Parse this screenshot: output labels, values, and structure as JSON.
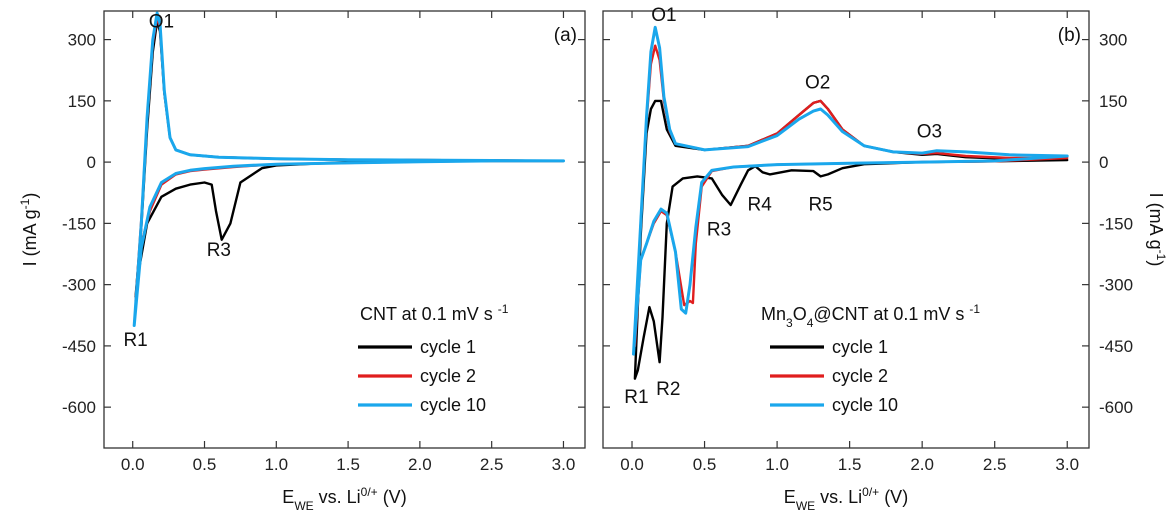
{
  "chart_data": [
    {
      "type": "line",
      "panel_label": "(a)",
      "xlabel": {
        "main": "E",
        "sub": "WE",
        "rest": " vs. Li",
        "sup": "0/+",
        "unit": " (V)"
      },
      "ylabel": {
        "main": "I (mA g",
        "sup": "-1",
        "end": ")"
      },
      "xlim": [
        -0.2,
        3.15
      ],
      "ylim": [
        -700,
        370
      ],
      "xticks": [
        0.0,
        0.5,
        1.0,
        1.5,
        2.0,
        2.5,
        3.0
      ],
      "xtick_labels": [
        "0.0",
        "0.5",
        "1.0",
        "1.5",
        "2.0",
        "2.5",
        "3.0"
      ],
      "yticks": [
        300,
        150,
        0,
        -150,
        -300,
        -450,
        -600
      ],
      "ytick_labels": [
        "300",
        "150",
        "0",
        "-150",
        "-300",
        "-450",
        "-600"
      ],
      "legend_title": {
        "main": "CNT at 0.1 mV s",
        "sup": "-1"
      },
      "legend_placement": "lower-right",
      "annotations": [
        {
          "text": "O1",
          "x": 0.2,
          "y": 330
        },
        {
          "text": "R3",
          "x": 0.6,
          "y": -230
        },
        {
          "text": "R1",
          "x": 0.02,
          "y": -450
        }
      ],
      "series": [
        {
          "name": "cycle 1",
          "color": "#000000",
          "x": [
            0.02,
            0.06,
            0.1,
            0.14,
            0.17,
            0.19,
            0.22,
            0.26,
            0.3,
            0.4,
            0.5,
            0.6,
            0.8,
            1.0,
            1.5,
            2.0,
            2.5,
            3.0,
            2.5,
            2.0,
            1.5,
            1.0,
            0.9,
            0.75,
            0.68,
            0.62,
            0.58,
            0.55,
            0.5,
            0.4,
            0.3,
            0.2,
            0.1,
            0.05,
            0.02
          ],
          "y": [
            -330,
            -160,
            80,
            270,
            345,
            320,
            170,
            60,
            30,
            18,
            15,
            12,
            10,
            8,
            6,
            5,
            4,
            3,
            3,
            2,
            0,
            -8,
            -15,
            -50,
            -150,
            -190,
            -120,
            -55,
            -50,
            -55,
            -65,
            -85,
            -150,
            -250,
            -330
          ]
        },
        {
          "name": "cycle 2",
          "color": "#e01e1e",
          "x": [
            0.02,
            0.06,
            0.1,
            0.14,
            0.17,
            0.19,
            0.22,
            0.26,
            0.3,
            0.4,
            0.5,
            0.6,
            0.8,
            1.0,
            1.5,
            2.0,
            2.5,
            3.0,
            2.5,
            2.0,
            1.5,
            1.0,
            0.7,
            0.5,
            0.4,
            0.3,
            0.2,
            0.12,
            0.06,
            0.02
          ],
          "y": [
            -340,
            -140,
            100,
            290,
            355,
            330,
            170,
            60,
            30,
            18,
            15,
            12,
            10,
            8,
            6,
            5,
            4,
            3,
            3,
            1,
            -2,
            -5,
            -12,
            -18,
            -22,
            -30,
            -55,
            -120,
            -200,
            -340
          ]
        },
        {
          "name": "cycle 10",
          "color": "#1aa7ec",
          "x": [
            0.01,
            0.06,
            0.1,
            0.14,
            0.17,
            0.19,
            0.22,
            0.26,
            0.3,
            0.4,
            0.5,
            0.6,
            0.8,
            1.0,
            1.5,
            2.0,
            2.5,
            3.0,
            2.5,
            2.0,
            1.5,
            1.0,
            0.7,
            0.5,
            0.4,
            0.3,
            0.2,
            0.12,
            0.06,
            0.01
          ],
          "y": [
            -400,
            -150,
            110,
            300,
            365,
            340,
            175,
            60,
            30,
            18,
            15,
            12,
            10,
            8,
            6,
            5,
            4,
            3,
            3,
            1,
            -2,
            -5,
            -10,
            -16,
            -20,
            -28,
            -50,
            -110,
            -210,
            -400
          ]
        }
      ]
    },
    {
      "type": "line",
      "panel_label": "(b)",
      "xlabel": {
        "main": "E",
        "sub": "WE",
        "rest": " vs. Li",
        "sup": "0/+",
        "unit": " (V)"
      },
      "ylabel": {
        "main": "I (mA g",
        "sup": "-1",
        "end": ")"
      },
      "xlim": [
        -0.2,
        3.15
      ],
      "ylim": [
        -700,
        370
      ],
      "xticks": [
        0.0,
        0.5,
        1.0,
        1.5,
        2.0,
        2.5,
        3.0
      ],
      "xtick_labels": [
        "0.0",
        "0.5",
        "1.0",
        "1.5",
        "2.0",
        "2.5",
        "3.0"
      ],
      "yticks": [
        300,
        150,
        0,
        -150,
        -300,
        -450,
        -600
      ],
      "ytick_labels": [
        "300",
        "150",
        "0",
        "-150",
        "-300",
        "-450",
        "-600"
      ],
      "legend_title": {
        "main": "Mn",
        "sub": "3",
        "mid": "O",
        "sub2": "4",
        "rest": "@CNT at 0.1 mV s",
        "sup": "-1"
      },
      "legend_placement": "lower-right",
      "annotations": [
        {
          "text": "O1",
          "x": 0.22,
          "y": 345
        },
        {
          "text": "O2",
          "x": 1.28,
          "y": 180
        },
        {
          "text": "O3",
          "x": 2.05,
          "y": 60
        },
        {
          "text": "R3",
          "x": 0.6,
          "y": -180
        },
        {
          "text": "R4",
          "x": 0.88,
          "y": -118
        },
        {
          "text": "R5",
          "x": 1.3,
          "y": -118
        },
        {
          "text": "R1",
          "x": 0.03,
          "y": -590
        },
        {
          "text": "R2",
          "x": 0.25,
          "y": -570
        }
      ],
      "series": [
        {
          "name": "cycle 1",
          "color": "#000000",
          "x": [
            0.02,
            0.06,
            0.1,
            0.13,
            0.16,
            0.2,
            0.24,
            0.3,
            0.5,
            0.8,
            1.0,
            1.15,
            1.25,
            1.3,
            1.35,
            1.45,
            1.6,
            1.8,
            2.0,
            2.1,
            2.3,
            2.6,
            3.0,
            2.5,
            2.0,
            1.6,
            1.45,
            1.35,
            1.3,
            1.25,
            1.1,
            0.95,
            0.9,
            0.85,
            0.8,
            0.75,
            0.68,
            0.62,
            0.55,
            0.45,
            0.35,
            0.28,
            0.24,
            0.21,
            0.19,
            0.15,
            0.12,
            0.08,
            0.04,
            0.02
          ],
          "y": [
            -530,
            -180,
            70,
            130,
            150,
            150,
            80,
            40,
            30,
            40,
            70,
            115,
            145,
            150,
            130,
            80,
            40,
            25,
            18,
            20,
            12,
            8,
            5,
            2,
            0,
            -5,
            -15,
            -30,
            -35,
            -22,
            -20,
            -30,
            -25,
            -10,
            -20,
            -55,
            -105,
            -80,
            -40,
            -35,
            -40,
            -60,
            -150,
            -380,
            -490,
            -390,
            -355,
            -430,
            -510,
            -530
          ]
        },
        {
          "name": "cycle 2",
          "color": "#e01e1e",
          "x": [
            0.02,
            0.06,
            0.1,
            0.13,
            0.16,
            0.19,
            0.22,
            0.26,
            0.3,
            0.5,
            0.8,
            1.0,
            1.15,
            1.25,
            1.3,
            1.35,
            1.45,
            1.6,
            1.8,
            2.0,
            2.1,
            2.3,
            2.6,
            3.0,
            2.5,
            2.0,
            1.5,
            1.0,
            0.7,
            0.55,
            0.48,
            0.44,
            0.42,
            0.4,
            0.36,
            0.3,
            0.24,
            0.2,
            0.15,
            0.1,
            0.06,
            0.02
          ],
          "y": [
            -450,
            -150,
            100,
            240,
            285,
            250,
            150,
            75,
            45,
            30,
            40,
            70,
            115,
            145,
            150,
            130,
            80,
            40,
            25,
            20,
            22,
            15,
            10,
            10,
            2,
            0,
            -3,
            -6,
            -12,
            -22,
            -60,
            -200,
            -345,
            -340,
            -350,
            -220,
            -130,
            -120,
            -150,
            -200,
            -240,
            -450
          ]
        },
        {
          "name": "cycle 10",
          "color": "#1aa7ec",
          "x": [
            0.01,
            0.06,
            0.1,
            0.13,
            0.16,
            0.19,
            0.22,
            0.26,
            0.3,
            0.5,
            0.8,
            1.0,
            1.15,
            1.25,
            1.3,
            1.35,
            1.45,
            1.6,
            1.8,
            2.0,
            2.1,
            2.3,
            2.6,
            3.0,
            2.5,
            2.0,
            1.5,
            1.0,
            0.7,
            0.55,
            0.48,
            0.44,
            0.4,
            0.37,
            0.34,
            0.3,
            0.24,
            0.2,
            0.15,
            0.1,
            0.06,
            0.01
          ],
          "y": [
            -470,
            -150,
            110,
            270,
            330,
            280,
            160,
            80,
            45,
            30,
            38,
            65,
            105,
            125,
            130,
            115,
            75,
            40,
            25,
            22,
            28,
            25,
            18,
            15,
            3,
            0,
            -3,
            -6,
            -12,
            -20,
            -50,
            -160,
            -300,
            -370,
            -360,
            -220,
            -125,
            -115,
            -145,
            -200,
            -240,
            -470
          ]
        }
      ]
    }
  ]
}
